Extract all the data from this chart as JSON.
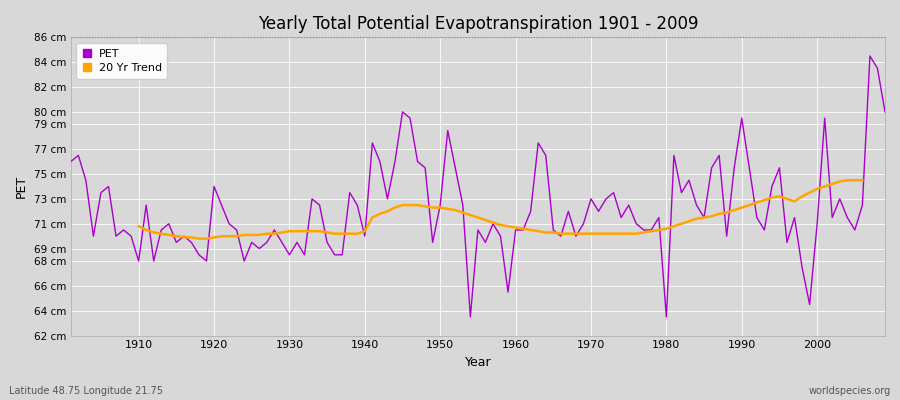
{
  "title": "Yearly Total Potential Evapotranspiration 1901 - 2009",
  "xlabel": "Year",
  "ylabel": "PET",
  "bottom_left": "Latitude 48.75 Longitude 21.75",
  "bottom_right": "worldspecies.org",
  "pet_color": "#AA00CC",
  "trend_color": "#FFA500",
  "bg_color": "#D8D8D8",
  "plot_bg_color": "#D8D8D8",
  "ylim": [
    62,
    86
  ],
  "yticks": [
    62,
    64,
    66,
    68,
    69,
    71,
    73,
    75,
    77,
    79,
    80,
    82,
    84,
    86
  ],
  "xlim_left": 1901,
  "xlim_right": 2009,
  "years": [
    1901,
    1902,
    1903,
    1904,
    1905,
    1906,
    1907,
    1908,
    1909,
    1910,
    1911,
    1912,
    1913,
    1914,
    1915,
    1916,
    1917,
    1918,
    1919,
    1920,
    1921,
    1922,
    1923,
    1924,
    1925,
    1926,
    1927,
    1928,
    1929,
    1930,
    1931,
    1932,
    1933,
    1934,
    1935,
    1936,
    1937,
    1938,
    1939,
    1940,
    1941,
    1942,
    1943,
    1944,
    1945,
    1946,
    1947,
    1948,
    1949,
    1950,
    1951,
    1952,
    1953,
    1954,
    1955,
    1956,
    1957,
    1958,
    1959,
    1960,
    1961,
    1962,
    1963,
    1964,
    1965,
    1966,
    1967,
    1968,
    1969,
    1970,
    1971,
    1972,
    1973,
    1974,
    1975,
    1976,
    1977,
    1978,
    1979,
    1980,
    1981,
    1982,
    1983,
    1984,
    1985,
    1986,
    1987,
    1988,
    1989,
    1990,
    1991,
    1992,
    1993,
    1994,
    1995,
    1996,
    1997,
    1998,
    1999,
    2000,
    2001,
    2002,
    2003,
    2004,
    2005,
    2006,
    2007,
    2008,
    2009
  ],
  "pet_values": [
    76.0,
    76.5,
    74.5,
    70.0,
    73.5,
    74.0,
    70.0,
    70.5,
    70.0,
    68.0,
    72.5,
    68.0,
    70.5,
    71.0,
    69.5,
    70.0,
    69.5,
    68.5,
    68.0,
    74.0,
    72.5,
    71.0,
    70.5,
    68.0,
    69.5,
    69.0,
    69.5,
    70.5,
    69.5,
    68.5,
    69.5,
    68.5,
    73.0,
    72.5,
    69.5,
    68.5,
    68.5,
    73.5,
    72.5,
    70.0,
    77.5,
    76.0,
    73.0,
    76.0,
    80.0,
    79.5,
    76.0,
    75.5,
    69.5,
    72.5,
    78.5,
    75.5,
    72.5,
    63.5,
    70.5,
    69.5,
    71.0,
    70.0,
    65.5,
    70.5,
    70.5,
    72.0,
    77.5,
    76.5,
    70.5,
    70.0,
    72.0,
    70.0,
    71.0,
    73.0,
    72.0,
    73.0,
    73.5,
    71.5,
    72.5,
    71.0,
    70.5,
    70.5,
    71.5,
    63.5,
    76.5,
    73.5,
    74.5,
    72.5,
    71.5,
    75.5,
    76.5,
    70.0,
    75.5,
    79.5,
    75.5,
    71.5,
    70.5,
    74.0,
    75.5,
    69.5,
    71.5,
    67.5,
    64.5,
    71.0,
    79.5,
    71.5,
    73.0,
    71.5,
    70.5,
    72.5,
    84.5,
    83.5,
    80.0
  ],
  "trend_years": [
    1910,
    1911,
    1912,
    1913,
    1914,
    1915,
    1916,
    1917,
    1918,
    1919,
    1920,
    1921,
    1922,
    1923,
    1924,
    1925,
    1926,
    1927,
    1928,
    1929,
    1930,
    1931,
    1932,
    1933,
    1934,
    1935,
    1936,
    1937,
    1938,
    1939,
    1940,
    1941,
    1942,
    1943,
    1944,
    1945,
    1946,
    1947,
    1948,
    1949,
    1950,
    1951,
    1952,
    1953,
    1954,
    1955,
    1956,
    1957,
    1958,
    1959,
    1960,
    1961,
    1962,
    1963,
    1964,
    1965,
    1966,
    1967,
    1968,
    1969,
    1970,
    1971,
    1972,
    1973,
    1974,
    1975,
    1976,
    1977,
    1978,
    1979,
    1980,
    1981,
    1982,
    1983,
    1984,
    1985,
    1986,
    1987,
    1988,
    1989,
    1990,
    1991,
    1992,
    1993,
    1994,
    1995,
    1996,
    1997,
    1998,
    1999,
    2000,
    2001,
    2002,
    2003,
    2004,
    2005,
    2006
  ],
  "trend_values": [
    70.8,
    70.5,
    70.3,
    70.2,
    70.1,
    70.0,
    69.9,
    69.9,
    69.8,
    69.8,
    69.9,
    70.0,
    70.0,
    70.0,
    70.1,
    70.1,
    70.1,
    70.2,
    70.2,
    70.3,
    70.4,
    70.4,
    70.4,
    70.4,
    70.4,
    70.3,
    70.2,
    70.2,
    70.2,
    70.2,
    70.4,
    71.5,
    71.8,
    72.0,
    72.3,
    72.5,
    72.5,
    72.5,
    72.4,
    72.3,
    72.3,
    72.2,
    72.1,
    71.9,
    71.7,
    71.5,
    71.3,
    71.1,
    70.9,
    70.8,
    70.7,
    70.6,
    70.5,
    70.4,
    70.3,
    70.3,
    70.2,
    70.2,
    70.2,
    70.2,
    70.2,
    70.2,
    70.2,
    70.2,
    70.2,
    70.2,
    70.2,
    70.3,
    70.4,
    70.5,
    70.6,
    70.8,
    71.0,
    71.2,
    71.4,
    71.5,
    71.6,
    71.8,
    71.9,
    72.1,
    72.3,
    72.5,
    72.7,
    72.9,
    73.1,
    73.2,
    73.0,
    72.8,
    73.2,
    73.5,
    73.8,
    74.0,
    74.2,
    74.4,
    74.5,
    74.5,
    74.5
  ]
}
